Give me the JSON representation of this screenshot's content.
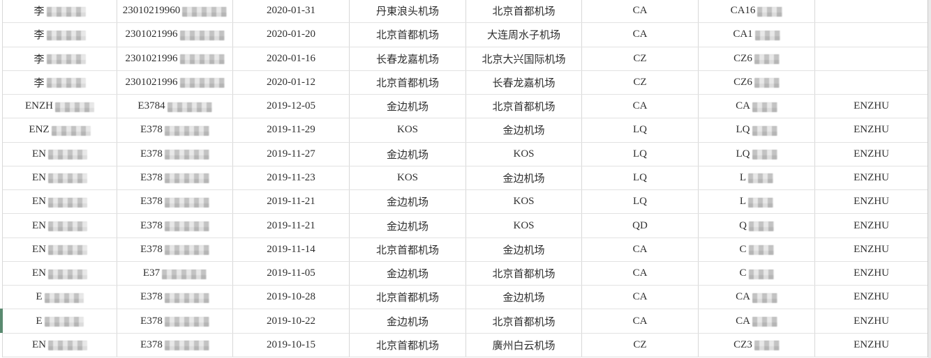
{
  "colors": {
    "grid_line": "#d8d8d8",
    "row_line": "#e2e2e2",
    "text": "#2f2f2f",
    "selected_indicator": "#5a8a70",
    "gutter_bg": "#e9e9e9",
    "gutter_line": "#c9c9c9",
    "page_bg": "#ffffff"
  },
  "selection": {
    "selected_row_index": 13
  },
  "table": {
    "columns": [
      "name",
      "id",
      "date",
      "departure",
      "arrival",
      "airline",
      "flight",
      "passenger"
    ],
    "rows": [
      {
        "name": "李",
        "name_redacted": true,
        "id": "23010219960",
        "id_redacted": true,
        "date": "2020-01-31",
        "departure": "丹東浪头机场",
        "arrival": "北京首都机场",
        "airline": "CA",
        "flight": "CA16",
        "flight_redacted": true,
        "passenger": ""
      },
      {
        "name": "李",
        "name_redacted": true,
        "id": "2301021996",
        "id_redacted": true,
        "date": "2020-01-20",
        "departure": "北京首都机场",
        "arrival": "大连周水子机场",
        "airline": "CA",
        "flight": "CA1",
        "flight_redacted": true,
        "passenger": ""
      },
      {
        "name": "李",
        "name_redacted": true,
        "id": "2301021996",
        "id_redacted": true,
        "date": "2020-01-16",
        "departure": "长春龙嘉机场",
        "arrival": "北京大兴国际机场",
        "airline": "CZ",
        "flight": "CZ6",
        "flight_redacted": true,
        "passenger": ""
      },
      {
        "name": "李",
        "name_redacted": true,
        "id": "2301021996",
        "id_redacted": true,
        "date": "2020-01-12",
        "departure": "北京首都机场",
        "arrival": "长春龙嘉机场",
        "airline": "CZ",
        "flight": "CZ6",
        "flight_redacted": true,
        "passenger": ""
      },
      {
        "name": "ENZH",
        "name_redacted": true,
        "id": "E3784",
        "id_redacted": true,
        "date": "2019-12-05",
        "departure": "金边机场",
        "arrival": "北京首都机场",
        "airline": "CA",
        "flight": "CA",
        "flight_redacted": true,
        "passenger": "ENZHU"
      },
      {
        "name": "ENZ",
        "name_redacted": true,
        "id": "E378",
        "id_redacted": true,
        "date": "2019-11-29",
        "departure": "KOS",
        "arrival": "金边机场",
        "airline": "LQ",
        "flight": "LQ",
        "flight_redacted": true,
        "passenger": "ENZHU"
      },
      {
        "name": "EN",
        "name_redacted": true,
        "id": "E378",
        "id_redacted": true,
        "date": "2019-11-27",
        "departure": "金边机场",
        "arrival": "KOS",
        "airline": "LQ",
        "flight": "LQ",
        "flight_redacted": true,
        "passenger": "ENZHU"
      },
      {
        "name": "EN",
        "name_redacted": true,
        "id": "E378",
        "id_redacted": true,
        "date": "2019-11-23",
        "departure": "KOS",
        "arrival": "金边机场",
        "airline": "LQ",
        "flight": "L",
        "flight_redacted": true,
        "passenger": "ENZHU"
      },
      {
        "name": "EN",
        "name_redacted": true,
        "id": "E378",
        "id_redacted": true,
        "date": "2019-11-21",
        "departure": "金边机场",
        "arrival": "KOS",
        "airline": "LQ",
        "flight": "L",
        "flight_redacted": true,
        "passenger": "ENZHU"
      },
      {
        "name": "EN",
        "name_redacted": true,
        "id": "E378",
        "id_redacted": true,
        "date": "2019-11-21",
        "departure": "金边机场",
        "arrival": "KOS",
        "airline": "QD",
        "flight": "Q",
        "flight_redacted": true,
        "passenger": "ENZHU"
      },
      {
        "name": "EN",
        "name_redacted": true,
        "id": "E378",
        "id_redacted": true,
        "date": "2019-11-14",
        "departure": "北京首都机场",
        "arrival": "金边机场",
        "airline": "CA",
        "flight": "C",
        "flight_redacted": true,
        "passenger": "ENZHU"
      },
      {
        "name": "EN",
        "name_redacted": true,
        "id": "E37",
        "id_redacted": true,
        "date": "2019-11-05",
        "departure": "金边机场",
        "arrival": "北京首都机场",
        "airline": "CA",
        "flight": "C",
        "flight_redacted": true,
        "passenger": "ENZHU"
      },
      {
        "name": "E",
        "name_redacted": true,
        "id": "E378",
        "id_redacted": true,
        "date": "2019-10-28",
        "departure": "北京首都机场",
        "arrival": "金边机场",
        "airline": "CA",
        "flight": "CA",
        "flight_redacted": true,
        "passenger": "ENZHU"
      },
      {
        "name": "E",
        "name_redacted": true,
        "id": "E378",
        "id_redacted": true,
        "date": "2019-10-22",
        "departure": "金边机场",
        "arrival": "北京首都机场",
        "airline": "CA",
        "flight": "CA",
        "flight_redacted": true,
        "passenger": "ENZHU"
      },
      {
        "name": "EN",
        "name_redacted": true,
        "id": "E378",
        "id_redacted": true,
        "date": "2019-10-15",
        "departure": "北京首都机场",
        "arrival": "廣州白云机场",
        "airline": "CZ",
        "flight": "CZ3",
        "flight_redacted": true,
        "passenger": "ENZHU"
      }
    ]
  }
}
